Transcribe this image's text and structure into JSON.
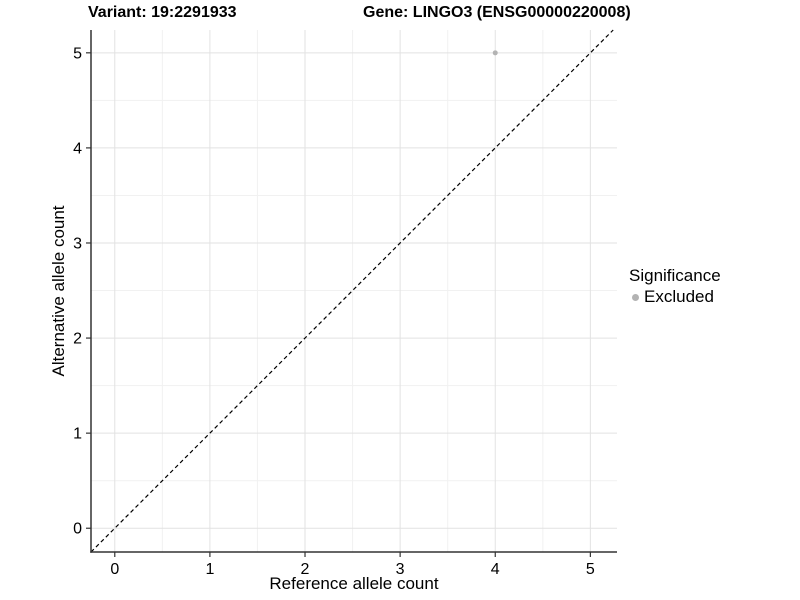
{
  "header": {
    "variant_title": "Variant: 19:2291933",
    "gene_title": "Gene: LINGO3 (ENSG00000220008)"
  },
  "legend": {
    "title": "Significance",
    "items": [
      {
        "label": "Excluded",
        "color": "#b3b3b3"
      }
    ]
  },
  "chart_data": {
    "type": "scatter",
    "title": "Variant: 19:2291933 | Gene: LINGO3 (ENSG00000220008)",
    "xlabel": "Reference allele count",
    "ylabel": "Alternative allele count",
    "xlim": [
      -0.25,
      5.28
    ],
    "ylim": [
      -0.25,
      5.24
    ],
    "xticks": [
      0,
      1,
      2,
      3,
      4,
      5
    ],
    "yticks": [
      0,
      1,
      2,
      3,
      4,
      5
    ],
    "minor_xticks": [
      0.5,
      1.5,
      2.5,
      3.5,
      4.5
    ],
    "minor_yticks": [
      0.5,
      1.5,
      2.5,
      3.5,
      4.5
    ],
    "grid": "major+minor",
    "legend_position": "right",
    "series": [
      {
        "name": "Excluded",
        "color": "#b3b3b3",
        "points": [
          {
            "x": 4,
            "y": 5
          }
        ]
      }
    ],
    "reference_line": {
      "style": "dashed",
      "slope": 1,
      "intercept": 0,
      "color": "#000000"
    }
  },
  "colors": {
    "background": "#ffffff",
    "axis_line": "#333333",
    "major_grid": "#e2e2e2",
    "minor_grid": "#f1f1f1",
    "point": "#b3b3b3",
    "text": "#000000"
  }
}
